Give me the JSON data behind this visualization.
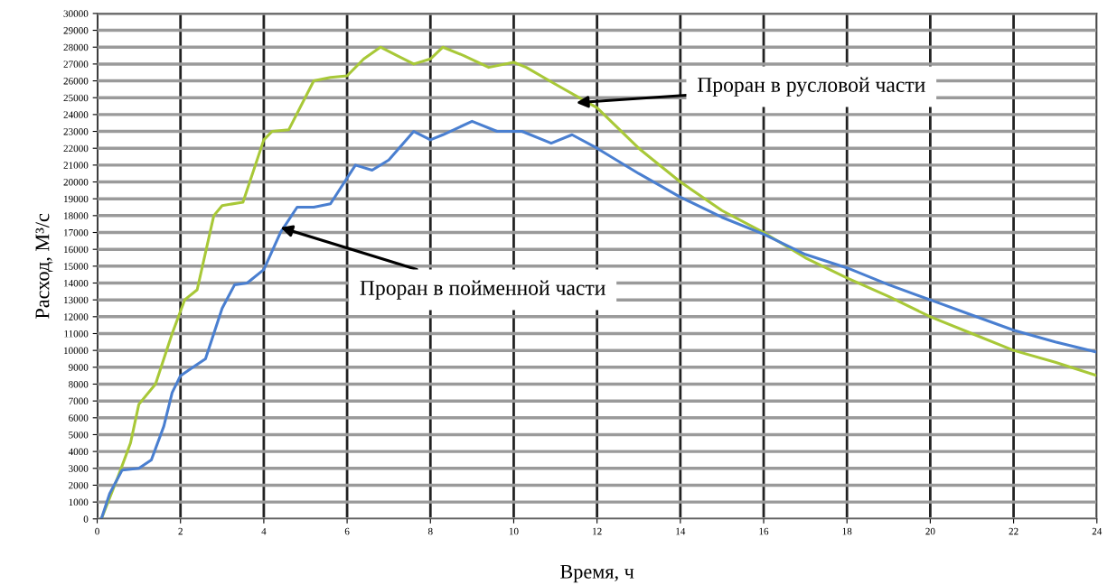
{
  "chart_data": {
    "type": "line",
    "xlabel": "Время, ч",
    "ylabel": "Расход, М³/с",
    "xlim": [
      0,
      24
    ],
    "ylim": [
      0,
      30000
    ],
    "xticks": [
      0,
      2,
      4,
      6,
      8,
      10,
      12,
      14,
      16,
      18,
      20,
      22,
      24
    ],
    "yticks": [
      0,
      1000,
      2000,
      3000,
      4000,
      5000,
      6000,
      7000,
      8000,
      9000,
      10000,
      11000,
      12000,
      13000,
      14000,
      15000,
      16000,
      17000,
      18000,
      19000,
      20000,
      21000,
      22000,
      23000,
      24000,
      25000,
      26000,
      27000,
      28000,
      29000,
      30000
    ],
    "grid": true,
    "legend": false,
    "line_style": "solid",
    "series": [
      {
        "color": "#a8c838",
        "x": [
          0.1,
          0.5,
          0.8,
          1.0,
          1.4,
          1.8,
          2.1,
          2.4,
          2.8,
          3.0,
          3.5,
          4.0,
          4.2,
          4.6,
          5.2,
          5.6,
          6.0,
          6.4,
          6.8,
          7.2,
          7.6,
          8.0,
          8.3,
          8.8,
          9.4,
          10.0,
          10.3,
          11,
          12,
          13,
          14,
          15,
          16,
          17,
          18,
          19,
          20,
          21,
          22,
          23,
          24
        ],
        "values": [
          0,
          2500,
          4500,
          6800,
          8000,
          11000,
          13000,
          13600,
          18000,
          18600,
          18800,
          22500,
          23000,
          23100,
          26000,
          26200,
          26300,
          27300,
          28000,
          27500,
          27000,
          27300,
          28000,
          27500,
          26800,
          27100,
          26800,
          25800,
          24400,
          22000,
          20000,
          18300,
          17000,
          15500,
          14300,
          13200,
          12000,
          11000,
          10000,
          9300,
          8500
        ]
      },
      {
        "color": "#4a7fd0",
        "x": [
          0.1,
          0.3,
          0.6,
          1.0,
          1.3,
          1.6,
          1.8,
          2.0,
          2.3,
          2.6,
          3.0,
          3.3,
          3.6,
          4.0,
          4.4,
          4.8,
          5.2,
          5.6,
          6.2,
          6.6,
          7.0,
          7.6,
          8.0,
          8.3,
          9.0,
          9.6,
          10.2,
          10.9,
          11.4,
          12,
          13,
          14,
          15,
          16,
          17,
          18,
          19,
          20,
          21,
          22,
          23,
          24
        ],
        "values": [
          0,
          1500,
          2900,
          3000,
          3500,
          5500,
          7500,
          8500,
          9000,
          9500,
          12500,
          13900,
          14000,
          14800,
          17000,
          18500,
          18500,
          18700,
          21000,
          20700,
          21300,
          23000,
          22500,
          22800,
          23600,
          23000,
          23000,
          22300,
          22800,
          22000,
          20500,
          19100,
          17900,
          16900,
          15700,
          14900,
          13900,
          13000,
          12100,
          11200,
          10500,
          9900
        ]
      }
    ],
    "annotations": [
      {
        "text": "Проран в русловой части",
        "x": 11.5,
        "y": 24700
      },
      {
        "text": "Проран в пойменной части",
        "x": 4.4,
        "y": 17300
      }
    ]
  }
}
